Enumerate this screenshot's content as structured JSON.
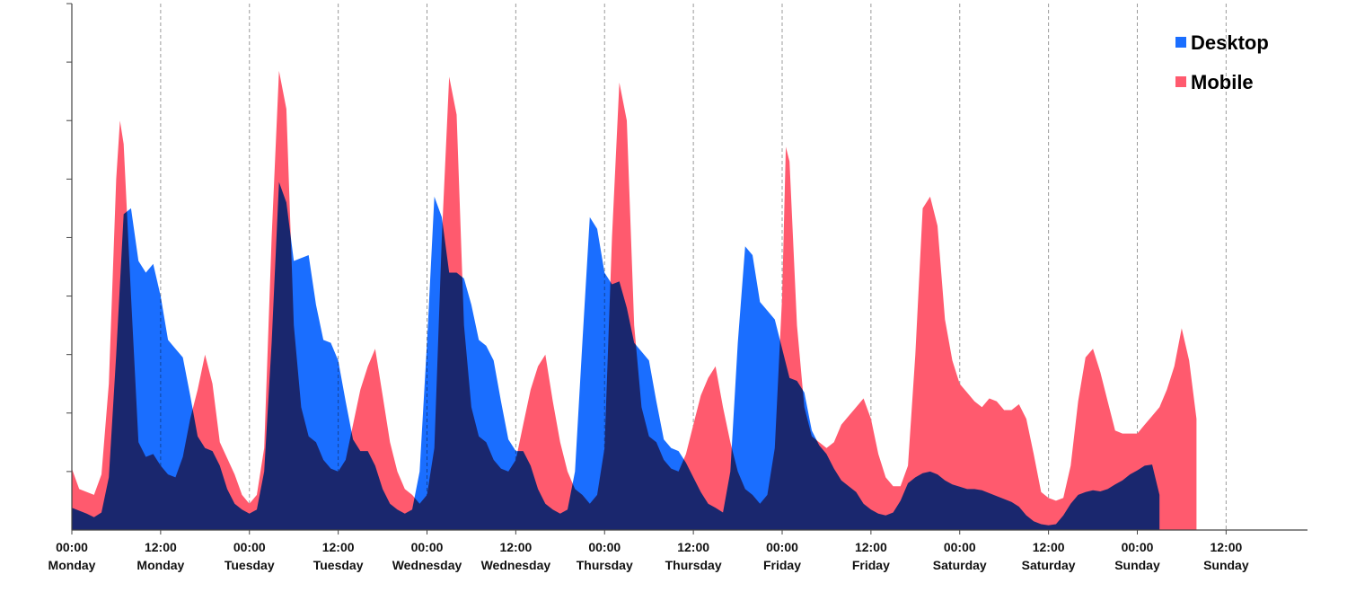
{
  "chart_data": {
    "type": "area",
    "title": "",
    "xlabel": "",
    "ylabel": "",
    "x_unit": "hours since Monday 00:00",
    "xlim": [
      0,
      167
    ],
    "ylim": [
      0,
      9
    ],
    "grid": {
      "x_dashed_every_12h": true,
      "y": false
    },
    "y_tick_labels_shown": false,
    "legend": {
      "placement": "top-right"
    },
    "x_ticks": [
      {
        "x": 0,
        "time": "00:00",
        "day": "Monday"
      },
      {
        "x": 12,
        "time": "12:00",
        "day": "Monday"
      },
      {
        "x": 24,
        "time": "00:00",
        "day": "Tuesday"
      },
      {
        "x": 36,
        "time": "12:00",
        "day": "Tuesday"
      },
      {
        "x": 48,
        "time": "00:00",
        "day": "Wednesday"
      },
      {
        "x": 60,
        "time": "12:00",
        "day": "Wednesday"
      },
      {
        "x": 72,
        "time": "00:00",
        "day": "Thursday"
      },
      {
        "x": 84,
        "time": "12:00",
        "day": "Thursday"
      },
      {
        "x": 96,
        "time": "00:00",
        "day": "Friday"
      },
      {
        "x": 108,
        "time": "12:00",
        "day": "Friday"
      },
      {
        "x": 120,
        "time": "00:00",
        "day": "Saturday"
      },
      {
        "x": 132,
        "time": "12:00",
        "day": "Saturday"
      },
      {
        "x": 144,
        "time": "00:00",
        "day": "Sunday"
      },
      {
        "x": 156,
        "time": "12:00",
        "day": "Sunday"
      }
    ],
    "series": [
      {
        "name": "Mobile",
        "color": "#ff5a6e",
        "points": [
          [
            0,
            1.05
          ],
          [
            1,
            0.7
          ],
          [
            3,
            0.6
          ],
          [
            4,
            0.95
          ],
          [
            5,
            2.5
          ],
          [
            6,
            6.0
          ],
          [
            6.5,
            7.0
          ],
          [
            7,
            6.6
          ],
          [
            8,
            4.0
          ],
          [
            9,
            1.5
          ],
          [
            10,
            1.25
          ],
          [
            11,
            1.3
          ],
          [
            12,
            1.1
          ],
          [
            13,
            0.95
          ],
          [
            14,
            0.9
          ],
          [
            15,
            1.25
          ],
          [
            16,
            1.9
          ],
          [
            17,
            2.4
          ],
          [
            18,
            3.0
          ],
          [
            19,
            2.5
          ],
          [
            20,
            1.5
          ],
          [
            22,
            0.95
          ],
          [
            23,
            0.6
          ],
          [
            24,
            0.45
          ],
          [
            25,
            0.6
          ],
          [
            26,
            1.4
          ],
          [
            27,
            5.0
          ],
          [
            28,
            7.85
          ],
          [
            29,
            7.2
          ],
          [
            30,
            3.5
          ],
          [
            31,
            2.1
          ],
          [
            32,
            1.6
          ],
          [
            33,
            1.5
          ],
          [
            34,
            1.2
          ],
          [
            35,
            1.05
          ],
          [
            36,
            1.0
          ],
          [
            37,
            1.2
          ],
          [
            38,
            1.8
          ],
          [
            39,
            2.4
          ],
          [
            40,
            2.8
          ],
          [
            41,
            3.1
          ],
          [
            42,
            2.3
          ],
          [
            43,
            1.5
          ],
          [
            44,
            1.0
          ],
          [
            45,
            0.7
          ],
          [
            46,
            0.6
          ],
          [
            47,
            0.45
          ],
          [
            48,
            0.6
          ],
          [
            49,
            1.4
          ],
          [
            50,
            5.0
          ],
          [
            51,
            7.75
          ],
          [
            52,
            7.1
          ],
          [
            53,
            3.5
          ],
          [
            54,
            2.1
          ],
          [
            55,
            1.6
          ],
          [
            56,
            1.5
          ],
          [
            57,
            1.2
          ],
          [
            58,
            1.05
          ],
          [
            59,
            1.0
          ],
          [
            60,
            1.2
          ],
          [
            61,
            1.8
          ],
          [
            62,
            2.4
          ],
          [
            63,
            2.8
          ],
          [
            64,
            3.0
          ],
          [
            65,
            2.2
          ],
          [
            66,
            1.5
          ],
          [
            67,
            1.0
          ],
          [
            68,
            0.7
          ],
          [
            69,
            0.6
          ],
          [
            70,
            0.45
          ],
          [
            71,
            0.6
          ],
          [
            72,
            1.4
          ],
          [
            73,
            5.0
          ],
          [
            74,
            7.65
          ],
          [
            75,
            7.0
          ],
          [
            76,
            3.5
          ],
          [
            77,
            2.1
          ],
          [
            78,
            1.6
          ],
          [
            79,
            1.5
          ],
          [
            80,
            1.2
          ],
          [
            81,
            1.05
          ],
          [
            82,
            1.0
          ],
          [
            83,
            1.3
          ],
          [
            84,
            1.8
          ],
          [
            85,
            2.3
          ],
          [
            86,
            2.6
          ],
          [
            87,
            2.8
          ],
          [
            88,
            2.1
          ],
          [
            89,
            1.5
          ],
          [
            90,
            1.0
          ],
          [
            91,
            0.7
          ],
          [
            92,
            0.6
          ],
          [
            93,
            0.45
          ],
          [
            94,
            0.6
          ],
          [
            95,
            1.4
          ],
          [
            96,
            4.0
          ],
          [
            96.5,
            6.55
          ],
          [
            97,
            6.3
          ],
          [
            98,
            3.5
          ],
          [
            99,
            2.1
          ],
          [
            100,
            1.6
          ],
          [
            101,
            1.5
          ],
          [
            102,
            1.4
          ],
          [
            103,
            1.5
          ],
          [
            104,
            1.8
          ],
          [
            105,
            1.95
          ],
          [
            106,
            2.1
          ],
          [
            107,
            2.25
          ],
          [
            108,
            1.9
          ],
          [
            109,
            1.3
          ],
          [
            110,
            0.9
          ],
          [
            111,
            0.75
          ],
          [
            112,
            0.75
          ],
          [
            113,
            1.1
          ],
          [
            114,
            3.0
          ],
          [
            115,
            5.5
          ],
          [
            116,
            5.7
          ],
          [
            117,
            5.2
          ],
          [
            118,
            3.6
          ],
          [
            119,
            2.9
          ],
          [
            120,
            2.5
          ],
          [
            121,
            2.35
          ],
          [
            122,
            2.2
          ],
          [
            123,
            2.1
          ],
          [
            124,
            2.25
          ],
          [
            125,
            2.2
          ],
          [
            126,
            2.05
          ],
          [
            127,
            2.05
          ],
          [
            128,
            2.15
          ],
          [
            129,
            1.9
          ],
          [
            130,
            1.3
          ],
          [
            131,
            0.65
          ],
          [
            132,
            0.55
          ],
          [
            133,
            0.5
          ],
          [
            134,
            0.55
          ],
          [
            135,
            1.1
          ],
          [
            136,
            2.2
          ],
          [
            137,
            2.95
          ],
          [
            138,
            3.1
          ],
          [
            139,
            2.7
          ],
          [
            140,
            2.2
          ],
          [
            141,
            1.7
          ],
          [
            142,
            1.65
          ],
          [
            143,
            1.65
          ],
          [
            144,
            1.65
          ],
          [
            145,
            1.8
          ],
          [
            146,
            1.95
          ],
          [
            147,
            2.1
          ],
          [
            148,
            2.4
          ],
          [
            149,
            2.8
          ],
          [
            150,
            3.45
          ],
          [
            151,
            2.9
          ],
          [
            152,
            1.9
          ]
        ]
      },
      {
        "name": "Desktop",
        "color": "#1a6eff",
        "points": [
          [
            0,
            0.38
          ],
          [
            2,
            0.28
          ],
          [
            3,
            0.22
          ],
          [
            4,
            0.3
          ],
          [
            5,
            0.9
          ],
          [
            6,
            3.0
          ],
          [
            7,
            5.4
          ],
          [
            8,
            5.5
          ],
          [
            9,
            4.6
          ],
          [
            10,
            4.4
          ],
          [
            11,
            4.55
          ],
          [
            12,
            4.0
          ],
          [
            13,
            3.25
          ],
          [
            14,
            3.1
          ],
          [
            15,
            2.95
          ],
          [
            16,
            2.3
          ],
          [
            17,
            1.6
          ],
          [
            18,
            1.4
          ],
          [
            19,
            1.35
          ],
          [
            20,
            1.1
          ],
          [
            21,
            0.7
          ],
          [
            22,
            0.45
          ],
          [
            23,
            0.35
          ],
          [
            24,
            0.28
          ],
          [
            25,
            0.35
          ],
          [
            26,
            1.0
          ],
          [
            27,
            3.2
          ],
          [
            28,
            5.95
          ],
          [
            29,
            5.6
          ],
          [
            30,
            4.6
          ],
          [
            31,
            4.65
          ],
          [
            32,
            4.7
          ],
          [
            33,
            3.85
          ],
          [
            34,
            3.25
          ],
          [
            35,
            3.2
          ],
          [
            36,
            2.9
          ],
          [
            37,
            2.2
          ],
          [
            38,
            1.55
          ],
          [
            39,
            1.35
          ],
          [
            40,
            1.35
          ],
          [
            41,
            1.1
          ],
          [
            42,
            0.7
          ],
          [
            43,
            0.45
          ],
          [
            44,
            0.35
          ],
          [
            45,
            0.28
          ],
          [
            46,
            0.35
          ],
          [
            47,
            1.0
          ],
          [
            48,
            3.2
          ],
          [
            49,
            5.7
          ],
          [
            50,
            5.35
          ],
          [
            51,
            4.4
          ],
          [
            52,
            4.4
          ],
          [
            53,
            4.3
          ],
          [
            54,
            3.85
          ],
          [
            55,
            3.25
          ],
          [
            56,
            3.15
          ],
          [
            57,
            2.9
          ],
          [
            58,
            2.2
          ],
          [
            59,
            1.55
          ],
          [
            60,
            1.35
          ],
          [
            61,
            1.35
          ],
          [
            62,
            1.1
          ],
          [
            63,
            0.7
          ],
          [
            64,
            0.45
          ],
          [
            65,
            0.35
          ],
          [
            66,
            0.28
          ],
          [
            67,
            0.35
          ],
          [
            68,
            1.0
          ],
          [
            69,
            3.2
          ],
          [
            70,
            5.35
          ],
          [
            71,
            5.15
          ],
          [
            72,
            4.4
          ],
          [
            73,
            4.2
          ],
          [
            74,
            4.25
          ],
          [
            75,
            3.8
          ],
          [
            76,
            3.2
          ],
          [
            77,
            3.05
          ],
          [
            78,
            2.9
          ],
          [
            79,
            2.2
          ],
          [
            80,
            1.55
          ],
          [
            81,
            1.4
          ],
          [
            82,
            1.35
          ],
          [
            83,
            1.15
          ],
          [
            84,
            0.9
          ],
          [
            85,
            0.65
          ],
          [
            86,
            0.45
          ],
          [
            87,
            0.38
          ],
          [
            88,
            0.3
          ],
          [
            89,
            1.0
          ],
          [
            90,
            3.2
          ],
          [
            91,
            4.85
          ],
          [
            92,
            4.7
          ],
          [
            93,
            3.9
          ],
          [
            94,
            3.75
          ],
          [
            95,
            3.6
          ],
          [
            96,
            3.1
          ],
          [
            97,
            2.6
          ],
          [
            98,
            2.55
          ],
          [
            99,
            2.35
          ],
          [
            100,
            1.7
          ],
          [
            101,
            1.45
          ],
          [
            102,
            1.3
          ],
          [
            103,
            1.05
          ],
          [
            104,
            0.85
          ],
          [
            105,
            0.75
          ],
          [
            106,
            0.65
          ],
          [
            107,
            0.45
          ],
          [
            108,
            0.35
          ],
          [
            109,
            0.28
          ],
          [
            110,
            0.25
          ],
          [
            111,
            0.3
          ],
          [
            112,
            0.5
          ],
          [
            113,
            0.8
          ],
          [
            114,
            0.9
          ],
          [
            115,
            0.97
          ],
          [
            116,
            1.0
          ],
          [
            117,
            0.95
          ],
          [
            118,
            0.85
          ],
          [
            119,
            0.78
          ],
          [
            120,
            0.74
          ],
          [
            121,
            0.7
          ],
          [
            122,
            0.7
          ],
          [
            123,
            0.68
          ],
          [
            124,
            0.63
          ],
          [
            125,
            0.58
          ],
          [
            126,
            0.53
          ],
          [
            127,
            0.48
          ],
          [
            128,
            0.4
          ],
          [
            129,
            0.25
          ],
          [
            130,
            0.15
          ],
          [
            131,
            0.1
          ],
          [
            132,
            0.08
          ],
          [
            133,
            0.1
          ],
          [
            134,
            0.25
          ],
          [
            135,
            0.45
          ],
          [
            136,
            0.6
          ],
          [
            137,
            0.65
          ],
          [
            138,
            0.68
          ],
          [
            139,
            0.66
          ],
          [
            140,
            0.7
          ],
          [
            141,
            0.78
          ],
          [
            142,
            0.85
          ],
          [
            143,
            0.95
          ],
          [
            144,
            1.02
          ],
          [
            145,
            1.1
          ],
          [
            146,
            1.12
          ],
          [
            147,
            0.6
          ]
        ]
      }
    ]
  }
}
